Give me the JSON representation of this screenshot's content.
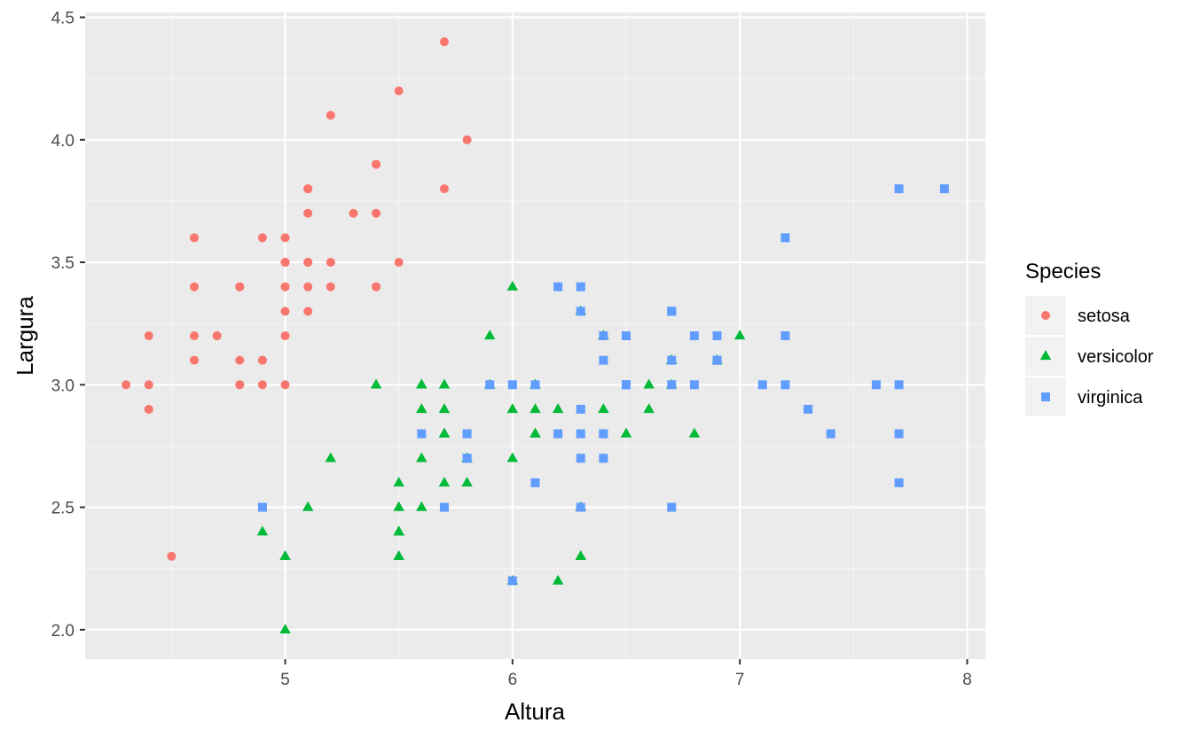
{
  "chart_data": {
    "type": "scatter",
    "xlabel": "Altura",
    "ylabel": "Largura",
    "xlim": [
      4.12,
      8.08
    ],
    "ylim": [
      1.88,
      4.52
    ],
    "xticks": [
      5,
      6,
      7,
      8
    ],
    "xtick_labels": [
      "5",
      "6",
      "7",
      "8"
    ],
    "yticks": [
      2.0,
      2.5,
      3.0,
      3.5,
      4.0,
      4.5
    ],
    "ytick_labels": [
      "2.0",
      "2.5",
      "3.0",
      "3.5",
      "4.0",
      "4.5"
    ],
    "grid": true,
    "legend": {
      "title": "Species",
      "position": "right"
    },
    "series": [
      {
        "name": "setosa",
        "shape": "circle",
        "color": "#F8766D",
        "points": [
          [
            5.1,
            3.5
          ],
          [
            4.9,
            3.0
          ],
          [
            4.7,
            3.2
          ],
          [
            4.6,
            3.1
          ],
          [
            5.0,
            3.6
          ],
          [
            5.4,
            3.9
          ],
          [
            4.6,
            3.4
          ],
          [
            5.0,
            3.4
          ],
          [
            4.4,
            2.9
          ],
          [
            4.9,
            3.1
          ],
          [
            5.4,
            3.7
          ],
          [
            4.8,
            3.4
          ],
          [
            4.8,
            3.0
          ],
          [
            4.3,
            3.0
          ],
          [
            5.8,
            4.0
          ],
          [
            5.7,
            4.4
          ],
          [
            5.4,
            3.9
          ],
          [
            5.1,
            3.5
          ],
          [
            5.7,
            3.8
          ],
          [
            5.1,
            3.8
          ],
          [
            5.4,
            3.4
          ],
          [
            5.1,
            3.7
          ],
          [
            4.6,
            3.6
          ],
          [
            5.1,
            3.3
          ],
          [
            4.8,
            3.4
          ],
          [
            5.0,
            3.0
          ],
          [
            5.0,
            3.4
          ],
          [
            5.2,
            3.5
          ],
          [
            5.2,
            3.4
          ],
          [
            4.7,
            3.2
          ],
          [
            4.8,
            3.1
          ],
          [
            5.4,
            3.4
          ],
          [
            5.2,
            4.1
          ],
          [
            5.5,
            4.2
          ],
          [
            4.9,
            3.1
          ],
          [
            5.0,
            3.2
          ],
          [
            5.5,
            3.5
          ],
          [
            4.9,
            3.6
          ],
          [
            4.4,
            3.0
          ],
          [
            5.1,
            3.4
          ],
          [
            5.0,
            3.5
          ],
          [
            4.5,
            2.3
          ],
          [
            4.4,
            3.2
          ],
          [
            5.0,
            3.5
          ],
          [
            5.1,
            3.8
          ],
          [
            4.8,
            3.0
          ],
          [
            5.1,
            3.8
          ],
          [
            4.6,
            3.2
          ],
          [
            5.3,
            3.7
          ],
          [
            5.0,
            3.3
          ]
        ]
      },
      {
        "name": "versicolor",
        "shape": "triangle",
        "color": "#00BA38",
        "points": [
          [
            7.0,
            3.2
          ],
          [
            6.4,
            3.2
          ],
          [
            6.9,
            3.1
          ],
          [
            5.5,
            2.3
          ],
          [
            6.5,
            2.8
          ],
          [
            5.7,
            2.8
          ],
          [
            6.3,
            3.3
          ],
          [
            4.9,
            2.4
          ],
          [
            6.6,
            2.9
          ],
          [
            5.2,
            2.7
          ],
          [
            5.0,
            2.0
          ],
          [
            5.9,
            3.0
          ],
          [
            6.0,
            2.2
          ],
          [
            6.1,
            2.9
          ],
          [
            5.6,
            2.9
          ],
          [
            6.7,
            3.1
          ],
          [
            5.6,
            3.0
          ],
          [
            5.8,
            2.7
          ],
          [
            6.2,
            2.2
          ],
          [
            5.6,
            2.5
          ],
          [
            5.9,
            3.2
          ],
          [
            6.1,
            2.8
          ],
          [
            6.3,
            2.5
          ],
          [
            6.1,
            2.8
          ],
          [
            6.4,
            2.9
          ],
          [
            6.6,
            3.0
          ],
          [
            6.8,
            2.8
          ],
          [
            6.7,
            3.0
          ],
          [
            6.0,
            2.9
          ],
          [
            5.7,
            2.6
          ],
          [
            5.5,
            2.4
          ],
          [
            5.5,
            2.4
          ],
          [
            5.8,
            2.7
          ],
          [
            6.0,
            2.7
          ],
          [
            5.4,
            3.0
          ],
          [
            6.0,
            3.4
          ],
          [
            6.7,
            3.1
          ],
          [
            6.3,
            2.3
          ],
          [
            5.6,
            3.0
          ],
          [
            5.5,
            2.5
          ],
          [
            5.5,
            2.6
          ],
          [
            6.1,
            3.0
          ],
          [
            5.8,
            2.6
          ],
          [
            5.0,
            2.3
          ],
          [
            5.6,
            2.7
          ],
          [
            5.7,
            3.0
          ],
          [
            5.7,
            2.9
          ],
          [
            6.2,
            2.9
          ],
          [
            5.1,
            2.5
          ],
          [
            5.7,
            2.8
          ]
        ]
      },
      {
        "name": "virginica",
        "shape": "square",
        "color": "#619CFF",
        "points": [
          [
            6.3,
            3.3
          ],
          [
            5.8,
            2.7
          ],
          [
            7.1,
            3.0
          ],
          [
            6.3,
            2.9
          ],
          [
            6.5,
            3.0
          ],
          [
            7.6,
            3.0
          ],
          [
            4.9,
            2.5
          ],
          [
            7.3,
            2.9
          ],
          [
            6.7,
            2.5
          ],
          [
            7.2,
            3.6
          ],
          [
            6.5,
            3.2
          ],
          [
            6.4,
            2.7
          ],
          [
            6.8,
            3.0
          ],
          [
            5.7,
            2.5
          ],
          [
            5.8,
            2.8
          ],
          [
            6.4,
            3.2
          ],
          [
            6.5,
            3.0
          ],
          [
            7.7,
            3.8
          ],
          [
            7.7,
            2.6
          ],
          [
            6.0,
            2.2
          ],
          [
            6.9,
            3.2
          ],
          [
            5.6,
            2.8
          ],
          [
            7.7,
            2.8
          ],
          [
            6.3,
            2.7
          ],
          [
            6.7,
            3.3
          ],
          [
            7.2,
            3.2
          ],
          [
            6.2,
            2.8
          ],
          [
            6.1,
            3.0
          ],
          [
            6.4,
            2.8
          ],
          [
            7.2,
            3.0
          ],
          [
            7.4,
            2.8
          ],
          [
            7.9,
            3.8
          ],
          [
            6.4,
            2.8
          ],
          [
            6.3,
            2.8
          ],
          [
            6.1,
            2.6
          ],
          [
            7.7,
            3.0
          ],
          [
            6.3,
            3.4
          ],
          [
            6.4,
            3.1
          ],
          [
            6.0,
            3.0
          ],
          [
            6.9,
            3.1
          ],
          [
            6.7,
            3.1
          ],
          [
            6.9,
            3.1
          ],
          [
            5.8,
            2.7
          ],
          [
            6.8,
            3.2
          ],
          [
            6.7,
            3.3
          ],
          [
            6.7,
            3.0
          ],
          [
            6.3,
            2.5
          ],
          [
            6.5,
            3.0
          ],
          [
            6.2,
            3.4
          ],
          [
            5.9,
            3.0
          ]
        ]
      }
    ]
  }
}
